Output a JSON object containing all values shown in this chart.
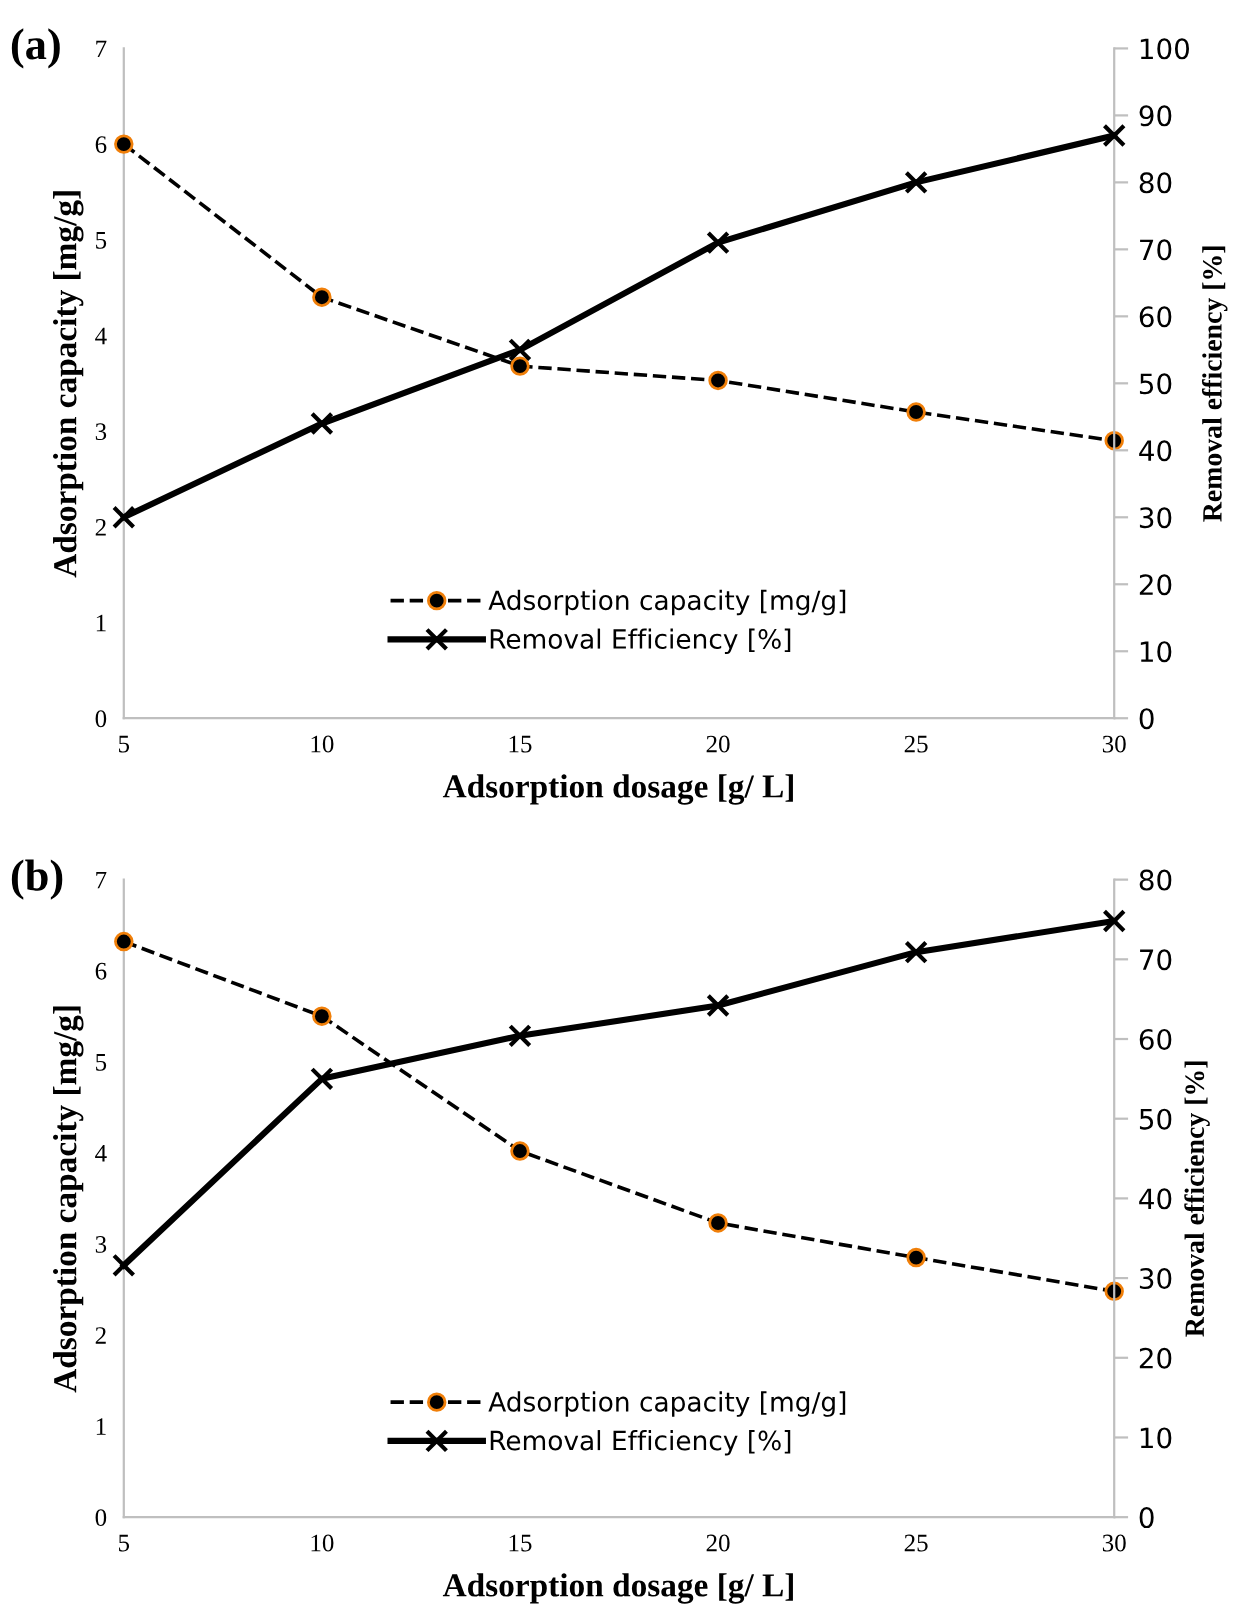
{
  "chart_data": [
    {
      "type": "line",
      "title": "(a)",
      "xlabel": "Adsorption dosage [g/ L]",
      "ylabel": "Adsorption capacity [mg/g]",
      "y2label": "Removal efficiency [%]",
      "x": [
        5,
        10,
        15,
        20,
        25,
        30
      ],
      "xlim": [
        5,
        30
      ],
      "xticks": [
        5,
        10,
        15,
        20,
        25,
        30
      ],
      "ylim": [
        0,
        7
      ],
      "yticks": [
        0,
        1,
        2,
        3,
        4,
        5,
        6,
        7
      ],
      "y2lim": [
        0,
        100
      ],
      "y2ticks": [
        0,
        10,
        20,
        30,
        40,
        50,
        60,
        70,
        80,
        90,
        100
      ],
      "legend": "bottom",
      "grid": false,
      "series": [
        {
          "name": "Adsorption capacity [mg/g]",
          "color": "#000000",
          "marker": "circle",
          "line_style": "dashed",
          "values": [
            6.0,
            4.4,
            3.68,
            3.53,
            3.2,
            2.9
          ]
        },
        {
          "name": "Removal Efficiency [%]",
          "color": "#000000",
          "marker": "cross",
          "line_style": "solid",
          "axis": "y2",
          "values": [
            30,
            44,
            55,
            71,
            80,
            87
          ]
        }
      ]
    },
    {
      "type": "line",
      "title": "(b)",
      "xlabel": "Adsorption dosage [g/ L]",
      "ylabel": "Adsorption capacity [mg/g]",
      "y2label": "Removal efficiency [%]",
      "x": [
        5,
        10,
        15,
        20,
        25,
        30
      ],
      "xlim": [
        5,
        30
      ],
      "xticks": [
        5,
        10,
        15,
        20,
        25,
        30
      ],
      "ylim": [
        0,
        7
      ],
      "yticks": [
        0,
        1,
        2,
        3,
        4,
        5,
        6,
        7
      ],
      "y2lim": [
        0,
        80
      ],
      "y2ticks": [
        0,
        10,
        20,
        30,
        40,
        50,
        60,
        70,
        80
      ],
      "legend": "bottom",
      "grid": false,
      "series": [
        {
          "name": "Adsorption capacity [mg/g]",
          "color": "#000000",
          "marker": "circle",
          "line_style": "dashed",
          "values": [
            6.32,
            5.5,
            4.02,
            3.23,
            2.85,
            2.48
          ]
        },
        {
          "name": "Removal Efficiency [%]",
          "color": "#000000",
          "marker": "cross",
          "line_style": "solid",
          "axis": "y2",
          "values": [
            31.6,
            55.0,
            60.4,
            64.2,
            70.9,
            74.8
          ]
        }
      ]
    }
  ]
}
